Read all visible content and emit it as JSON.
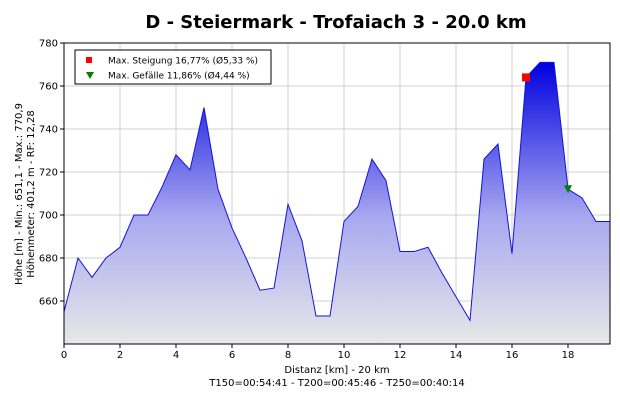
{
  "chart_data": {
    "type": "area",
    "title": "D - Steiermark - Trofaiach 3 - 20.0 km",
    "xlabel": "Distanz [km] - 20 km",
    "xlabel_line2": "T150=00:54:41 - T200=00:45:46 - T250=00:40:14",
    "ylabel_line1": "Höhe [m] - Min.: 651,1 - Max.: 770,9",
    "ylabel_line2": "Höhenmeter: 401,2 m - RF: 12,28",
    "xlim": [
      0,
      19.5
    ],
    "ylim": [
      640,
      780
    ],
    "xticks": [
      0,
      2,
      4,
      6,
      8,
      10,
      12,
      14,
      16,
      18
    ],
    "yticks": [
      660,
      680,
      700,
      720,
      740,
      760,
      780
    ],
    "grid": true,
    "legend_position": "top-left",
    "series": [
      {
        "x": [
          0,
          0.5,
          1.0,
          1.5,
          2.0,
          2.5,
          3.0,
          3.5,
          4.0,
          4.5,
          5.0,
          5.5,
          6.0,
          6.5,
          7.0,
          7.5,
          8.0,
          8.5,
          9.0,
          9.5,
          10.0,
          10.5,
          11.0,
          11.5,
          12.0,
          12.5,
          13.0,
          13.5,
          14.0,
          14.5,
          15.0,
          15.5,
          16.0,
          16.5,
          17.0,
          17.5,
          18.0,
          18.5,
          19.0,
          19.5
        ],
        "y": [
          655,
          680,
          671,
          680,
          685,
          700,
          700,
          713,
          728,
          721,
          750,
          712,
          694,
          680,
          665,
          666,
          705,
          688,
          653,
          653,
          697,
          704,
          726,
          716,
          683,
          683,
          685,
          673,
          662,
          651,
          726,
          733,
          682,
          764,
          771,
          771,
          712,
          708,
          697,
          697
        ]
      }
    ],
    "markers": [
      {
        "label": "Max. Steigung 16,77% (Ø5,33 %)",
        "x": 16.5,
        "y": 764,
        "shape": "square",
        "color": "#ff0000"
      },
      {
        "label": "Max. Gefälle 11,86% (Ø4,44 %)",
        "x": 18.0,
        "y": 712,
        "shape": "triangle-down",
        "color": "#008000"
      }
    ],
    "colors": {
      "line": "#1414d8",
      "fill_top": "#0000e0",
      "fill_bottom": "#e8e8e8",
      "gridline": "#d0d0d0"
    }
  }
}
